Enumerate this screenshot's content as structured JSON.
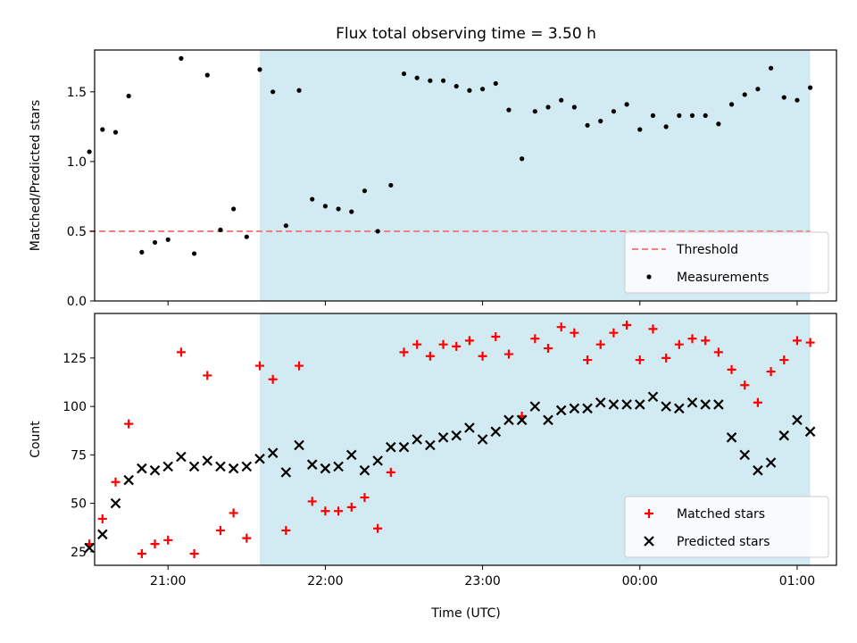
{
  "figure": {
    "title": "Flux total observing time = 3.50 h",
    "xlabel": "Time (UTC)"
  },
  "colors": {
    "span": "#add8e6",
    "threshold": "#f08080",
    "measurements": "#000000",
    "matched": "#ff0000",
    "predicted": "#000000"
  },
  "chart_data": [
    {
      "type": "scatter",
      "ylabel": "Matched/Predicted stars",
      "x_unit": "UTC time",
      "xlim": [
        "20:32",
        "01:15"
      ],
      "ylim": [
        0,
        1.8
      ],
      "yticks": [
        0.0,
        0.5,
        1.0,
        1.5
      ],
      "ytick_labels": [
        "0.0",
        "0.5",
        "1.0",
        "1.5"
      ],
      "observing_span": [
        "21:35",
        "01:05"
      ],
      "legend": {
        "placement": "lower-right",
        "entries": [
          "Threshold",
          "Measurements"
        ]
      },
      "threshold": {
        "name": "Threshold",
        "y": 0.5,
        "x_range": [
          "20:30",
          "01:05"
        ]
      },
      "series": [
        {
          "name": "Measurements",
          "x": [
            "20:30",
            "20:35",
            "20:40",
            "20:45",
            "20:50",
            "20:55",
            "21:00",
            "21:05",
            "21:10",
            "21:15",
            "21:20",
            "21:25",
            "21:30",
            "21:35",
            "21:40",
            "21:45",
            "21:50",
            "21:55",
            "22:00",
            "22:05",
            "22:10",
            "22:15",
            "22:20",
            "22:25",
            "22:30",
            "22:35",
            "22:40",
            "22:45",
            "22:50",
            "22:55",
            "23:00",
            "23:05",
            "23:10",
            "23:15",
            "23:20",
            "23:25",
            "23:30",
            "23:35",
            "23:40",
            "23:45",
            "23:50",
            "23:55",
            "00:00",
            "00:05",
            "00:10",
            "00:15",
            "00:20",
            "00:25",
            "00:30",
            "00:35",
            "00:40",
            "00:45",
            "00:50",
            "00:55",
            "01:00",
            "01:05"
          ],
          "y": [
            1.07,
            1.23,
            1.21,
            1.47,
            0.35,
            0.42,
            0.44,
            1.74,
            0.34,
            1.62,
            0.51,
            0.66,
            0.46,
            1.66,
            1.5,
            0.54,
            1.51,
            0.73,
            0.68,
            0.66,
            0.64,
            0.79,
            0.5,
            0.83,
            1.63,
            1.6,
            1.58,
            1.58,
            1.54,
            1.51,
            1.52,
            1.56,
            1.37,
            1.02,
            1.36,
            1.39,
            1.44,
            1.39,
            1.26,
            1.29,
            1.36,
            1.41,
            1.23,
            1.33,
            1.25,
            1.33,
            1.33,
            1.33,
            1.27,
            1.41,
            1.48,
            1.52,
            1.67,
            1.46,
            1.44,
            1.53
          ]
        }
      ]
    },
    {
      "type": "scatter",
      "ylabel": "Count",
      "x_unit": "UTC time",
      "xlim": [
        "20:32",
        "01:15"
      ],
      "ylim": [
        18,
        148
      ],
      "yticks": [
        25,
        50,
        75,
        100,
        125
      ],
      "ytick_labels": [
        "25",
        "50",
        "75",
        "100",
        "125"
      ],
      "xtick_labels": [
        "21:00",
        "22:00",
        "23:00",
        "00:00",
        "01:00"
      ],
      "observing_span": [
        "21:35",
        "01:05"
      ],
      "legend": {
        "placement": "lower-right",
        "entries": [
          "Matched stars",
          "Predicted stars"
        ]
      },
      "series": [
        {
          "name": "Matched stars",
          "marker": "+",
          "x": [
            "20:30",
            "20:35",
            "20:40",
            "20:45",
            "20:50",
            "20:55",
            "21:00",
            "21:05",
            "21:10",
            "21:15",
            "21:20",
            "21:25",
            "21:30",
            "21:35",
            "21:40",
            "21:45",
            "21:50",
            "21:55",
            "22:00",
            "22:05",
            "22:10",
            "22:15",
            "22:20",
            "22:25",
            "22:30",
            "22:35",
            "22:40",
            "22:45",
            "22:50",
            "22:55",
            "23:00",
            "23:05",
            "23:10",
            "23:15",
            "23:20",
            "23:25",
            "23:30",
            "23:35",
            "23:40",
            "23:45",
            "23:50",
            "23:55",
            "00:00",
            "00:05",
            "00:10",
            "00:15",
            "00:20",
            "00:25",
            "00:30",
            "00:35",
            "00:40",
            "00:45",
            "00:50",
            "00:55",
            "01:00",
            "01:05"
          ],
          "y": [
            29,
            42,
            61,
            91,
            24,
            29,
            31,
            128,
            24,
            116,
            36,
            45,
            32,
            121,
            114,
            36,
            121,
            51,
            46,
            46,
            48,
            53,
            37,
            66,
            128,
            132,
            126,
            132,
            131,
            134,
            126,
            136,
            127,
            95,
            135,
            130,
            141,
            138,
            124,
            132,
            138,
            142,
            124,
            140,
            125,
            132,
            135,
            134,
            128,
            119,
            111,
            102,
            118,
            124,
            134,
            133
          ]
        },
        {
          "name": "Predicted stars",
          "marker": "x",
          "x": [
            "20:30",
            "20:35",
            "20:40",
            "20:45",
            "20:50",
            "20:55",
            "21:00",
            "21:05",
            "21:10",
            "21:15",
            "21:20",
            "21:25",
            "21:30",
            "21:35",
            "21:40",
            "21:45",
            "21:50",
            "21:55",
            "22:00",
            "22:05",
            "22:10",
            "22:15",
            "22:20",
            "22:25",
            "22:30",
            "22:35",
            "22:40",
            "22:45",
            "22:50",
            "22:55",
            "23:00",
            "23:05",
            "23:10",
            "23:15",
            "23:20",
            "23:25",
            "23:30",
            "23:35",
            "23:40",
            "23:45",
            "23:50",
            "23:55",
            "00:00",
            "00:05",
            "00:10",
            "00:15",
            "00:20",
            "00:25",
            "00:30",
            "00:35",
            "00:40",
            "00:45",
            "00:50",
            "00:55",
            "01:00",
            "01:05"
          ],
          "y": [
            27,
            34,
            50,
            62,
            68,
            67,
            69,
            74,
            69,
            72,
            69,
            68,
            69,
            73,
            76,
            66,
            80,
            70,
            68,
            69,
            75,
            67,
            72,
            79,
            79,
            83,
            80,
            84,
            85,
            89,
            83,
            87,
            93,
            93,
            100,
            93,
            98,
            99,
            99,
            102,
            101,
            101,
            101,
            105,
            100,
            99,
            102,
            101,
            101,
            84,
            75,
            67,
            71,
            85,
            93,
            87
          ]
        }
      ]
    }
  ]
}
